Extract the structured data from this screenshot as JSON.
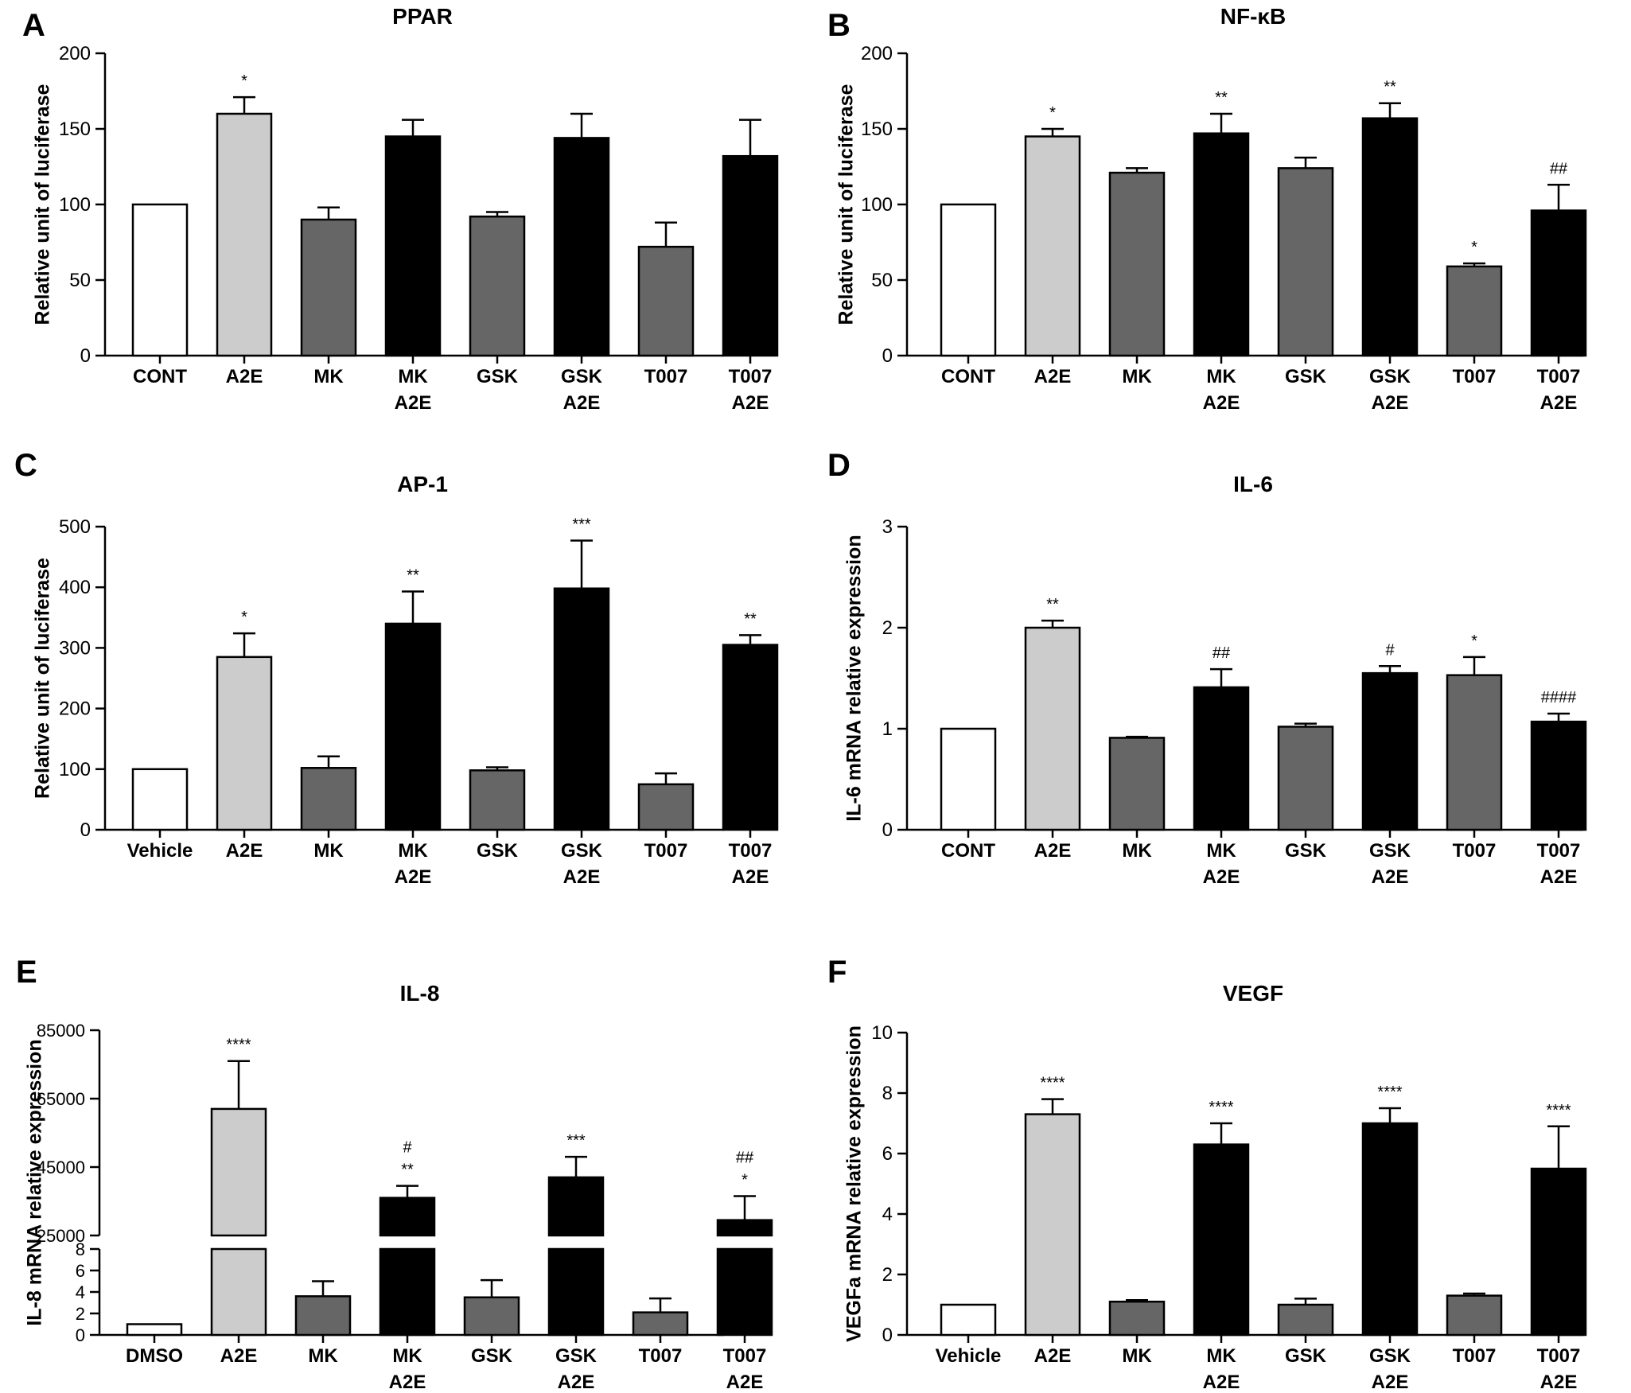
{
  "colors": {
    "white": "#ffffff",
    "light_gray": "#cccccc",
    "dark_gray": "#666666",
    "black": "#000000",
    "axis": "#000000"
  },
  "chart_data": [
    {
      "panel": "A",
      "type": "bar",
      "title": "PPAR",
      "ylabel": "Relative unit of luciferase",
      "ylim": [
        0,
        200
      ],
      "yticks": [
        0,
        50,
        100,
        150,
        200
      ],
      "categories": [
        [
          "CONT"
        ],
        [
          "A2E"
        ],
        [
          "MK"
        ],
        [
          "MK",
          "A2E"
        ],
        [
          "GSK"
        ],
        [
          "GSK",
          "A2E"
        ],
        [
          "T007"
        ],
        [
          "T007",
          "A2E"
        ]
      ],
      "values": [
        100,
        160,
        90,
        145,
        92,
        144,
        72,
        132
      ],
      "errors": [
        0,
        11,
        8,
        11,
        3,
        16,
        16,
        24
      ],
      "annotations": [
        "",
        "*",
        "",
        "",
        "",
        "",
        "",
        ""
      ],
      "fills": [
        "white",
        "light_gray",
        "dark_gray",
        "black",
        "dark_gray",
        "black",
        "dark_gray",
        "black"
      ]
    },
    {
      "panel": "B",
      "type": "bar",
      "title": "NF-κB",
      "ylabel": "Relative unit of luciferase",
      "ylim": [
        0,
        200
      ],
      "yticks": [
        0,
        50,
        100,
        150,
        200
      ],
      "categories": [
        [
          "CONT"
        ],
        [
          "A2E"
        ],
        [
          "MK"
        ],
        [
          "MK",
          "A2E"
        ],
        [
          "GSK"
        ],
        [
          "GSK",
          "A2E"
        ],
        [
          "T007"
        ],
        [
          "T007",
          "A2E"
        ]
      ],
      "values": [
        100,
        145,
        121,
        147,
        124,
        157,
        59,
        96
      ],
      "errors": [
        0,
        5,
        3,
        13,
        7,
        10,
        2,
        17
      ],
      "annotations": [
        "",
        "*",
        "",
        "**",
        "",
        "**",
        "*",
        "##"
      ],
      "fills": [
        "white",
        "light_gray",
        "dark_gray",
        "black",
        "dark_gray",
        "black",
        "dark_gray",
        "black"
      ]
    },
    {
      "panel": "C",
      "type": "bar",
      "title": "AP-1",
      "ylabel": "Relative unit of luciferase",
      "ylim": [
        0,
        500
      ],
      "yticks": [
        0,
        100,
        200,
        300,
        400,
        500
      ],
      "categories": [
        [
          "Vehicle"
        ],
        [
          "A2E"
        ],
        [
          "MK"
        ],
        [
          "MK",
          "A2E"
        ],
        [
          "GSK"
        ],
        [
          "GSK",
          "A2E"
        ],
        [
          "T007"
        ],
        [
          "T007",
          "A2E"
        ]
      ],
      "values": [
        100,
        285,
        102,
        340,
        98,
        398,
        75,
        305
      ],
      "errors": [
        0,
        39,
        19,
        53,
        5,
        79,
        18,
        16
      ],
      "annotations": [
        "",
        "*",
        "",
        "**",
        "",
        "***",
        "",
        "**"
      ],
      "fills": [
        "white",
        "light_gray",
        "dark_gray",
        "black",
        "dark_gray",
        "black",
        "dark_gray",
        "black"
      ]
    },
    {
      "panel": "D",
      "type": "bar",
      "title": "IL-6",
      "ylabel": "IL-6 mRNA relative expression",
      "ylim": [
        0,
        3
      ],
      "yticks": [
        0,
        1,
        2,
        3
      ],
      "categories": [
        [
          "CONT"
        ],
        [
          "A2E"
        ],
        [
          "MK"
        ],
        [
          "MK",
          "A2E"
        ],
        [
          "GSK"
        ],
        [
          "GSK",
          "A2E"
        ],
        [
          "T007"
        ],
        [
          "T007",
          "A2E"
        ]
      ],
      "values": [
        1.0,
        2.0,
        0.91,
        1.41,
        1.02,
        1.55,
        1.53,
        1.07
      ],
      "errors": [
        0,
        0.07,
        0.01,
        0.18,
        0.03,
        0.07,
        0.18,
        0.08
      ],
      "annotations": [
        "",
        "**",
        "##",
        "",
        "",
        "#",
        "*",
        "####"
      ],
      "annotation_positions": [
        1,
        1,
        3,
        3,
        5,
        5,
        6,
        7
      ],
      "fills": [
        "white",
        "light_gray",
        "dark_gray",
        "black",
        "dark_gray",
        "black",
        "dark_gray",
        "black"
      ]
    },
    {
      "panel": "E",
      "type": "bar",
      "title": "IL-8",
      "ylabel": "IL-8 mRNA relative expression",
      "broken_axis": true,
      "ylim_lower": [
        0,
        8
      ],
      "yticks_lower": [
        0,
        2,
        4,
        6,
        8
      ],
      "ylim_upper": [
        25000,
        85000
      ],
      "yticks_upper": [
        25000,
        45000,
        65000,
        85000
      ],
      "categories": [
        [
          "DMSO"
        ],
        [
          "A2E"
        ],
        [
          "MK"
        ],
        [
          "MK",
          "A2E"
        ],
        [
          "GSK"
        ],
        [
          "GSK",
          "A2E"
        ],
        [
          "T007"
        ],
        [
          "T007",
          "A2E"
        ]
      ],
      "values": [
        1.0,
        62000,
        3.6,
        36000,
        3.5,
        42000,
        2.1,
        29500
      ],
      "errors": [
        0,
        14000,
        1.4,
        3500,
        1.6,
        6000,
        1.3,
        7000
      ],
      "annotations": [
        [],
        [
          "****"
        ],
        [],
        [
          "#",
          "**"
        ],
        [],
        [
          "***"
        ],
        [],
        [
          "##",
          "*"
        ]
      ],
      "fills": [
        "white",
        "light_gray",
        "dark_gray",
        "black",
        "dark_gray",
        "black",
        "dark_gray",
        "black"
      ]
    },
    {
      "panel": "F",
      "type": "bar",
      "title": "VEGF",
      "ylabel": "VEGFa mRNA relative expression",
      "ylim": [
        0,
        10
      ],
      "yticks": [
        0,
        2,
        4,
        6,
        8,
        10
      ],
      "categories": [
        [
          "Vehicle"
        ],
        [
          "A2E"
        ],
        [
          "MK"
        ],
        [
          "MK",
          "A2E"
        ],
        [
          "GSK"
        ],
        [
          "GSK",
          "A2E"
        ],
        [
          "T007"
        ],
        [
          "T007",
          "A2E"
        ]
      ],
      "values": [
        1.0,
        7.3,
        1.1,
        6.3,
        1.0,
        7.0,
        1.3,
        5.5
      ],
      "errors": [
        0,
        0.5,
        0.05,
        0.7,
        0.2,
        0.5,
        0.07,
        1.4
      ],
      "annotations": [
        "",
        "****",
        "",
        "****",
        "",
        "****",
        "",
        "****"
      ],
      "fills": [
        "white",
        "light_gray",
        "dark_gray",
        "black",
        "dark_gray",
        "black",
        "dark_gray",
        "black"
      ]
    }
  ]
}
